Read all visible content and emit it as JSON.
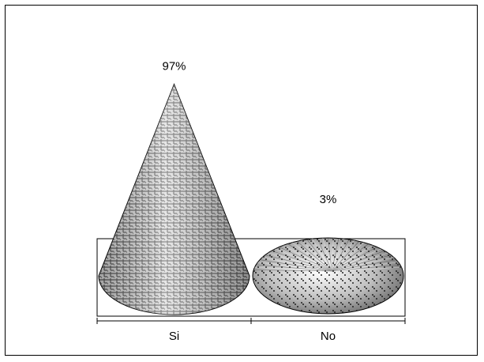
{
  "chart_data": {
    "type": "bar",
    "style": "3d-cone",
    "categories": [
      "Si",
      "No"
    ],
    "values": [
      97,
      3
    ],
    "data_labels": [
      "97%",
      "3%"
    ],
    "ylim": [
      0,
      100
    ],
    "grid": false,
    "legend": "none",
    "title": "",
    "xlabel": "",
    "ylabel": ""
  }
}
